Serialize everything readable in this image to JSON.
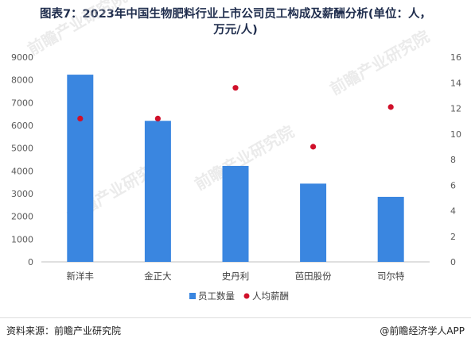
{
  "title_line1": "图表7：2023年中国生物肥料行业上市公司员工构成及薪酬分析(单位：人，",
  "title_line2": "万元/人)",
  "source": "资料来源：前瞻产业研究院",
  "brand": "@前瞻经济学人APP",
  "watermark": "前瞻产业研究院",
  "chart_data": {
    "type": "bar",
    "categories": [
      "新洋丰",
      "金正大",
      "史丹利",
      "芭田股份",
      "司尔特"
    ],
    "series": [
      {
        "name": "员工数量",
        "kind": "bar",
        "axis": "left",
        "color": "#3a86e0",
        "values": [
          8230,
          6200,
          4220,
          3440,
          2860
        ]
      },
      {
        "name": "人均薪酬",
        "kind": "scatter",
        "axis": "right",
        "color": "#d0102a",
        "values": [
          11.2,
          11.2,
          13.6,
          9.0,
          12.1
        ]
      }
    ],
    "y_left": {
      "min": 0,
      "max": 9000,
      "step": 1000,
      "ticks": [
        "0",
        "1000",
        "2000",
        "3000",
        "4000",
        "5000",
        "6000",
        "7000",
        "8000",
        "9000"
      ]
    },
    "y_right": {
      "min": 0,
      "max": 16,
      "step": 2,
      "ticks": [
        "0",
        "2",
        "4",
        "6",
        "8",
        "10",
        "12",
        "14",
        "16"
      ]
    },
    "grid": false,
    "legend": "bottom-center"
  }
}
